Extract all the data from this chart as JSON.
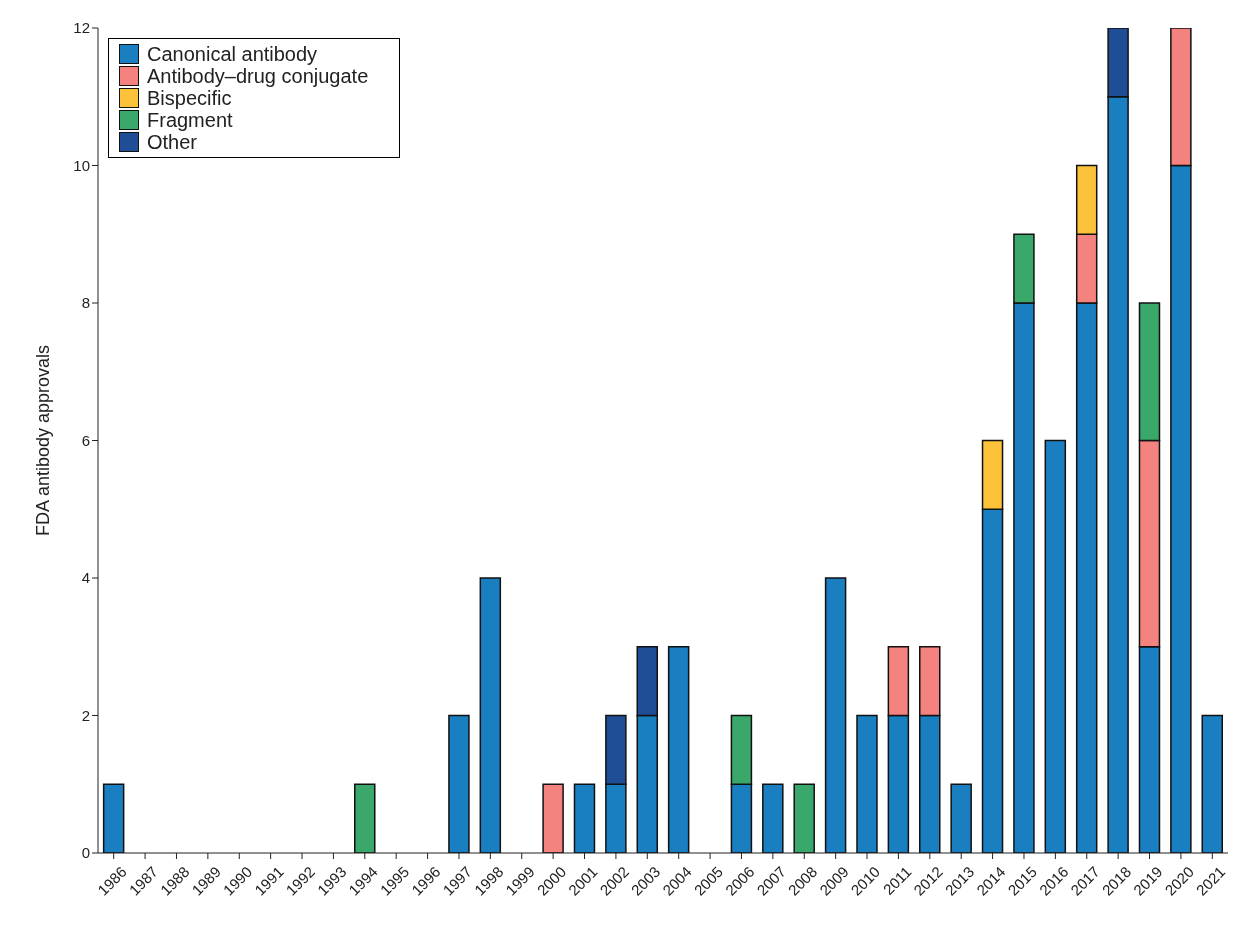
{
  "chart_data": {
    "type": "bar",
    "ylabel": "FDA antibody approvals",
    "stacked": true,
    "legend": "top left",
    "grid": false,
    "categories": [
      "1986",
      "1987",
      "1988",
      "1989",
      "1990",
      "1991",
      "1992",
      "1993",
      "1994",
      "1995",
      "1996",
      "1997",
      "1998",
      "1999",
      "2000",
      "2001",
      "2002",
      "2003",
      "2004",
      "2005",
      "2006",
      "2007",
      "2008",
      "2009",
      "2010",
      "2011",
      "2012",
      "2013",
      "2014",
      "2015",
      "2016",
      "2017",
      "2018",
      "2019",
      "2020",
      "2021"
    ],
    "ylim": [
      0,
      12
    ],
    "yticks": [
      0,
      2,
      4,
      6,
      8,
      10,
      12
    ],
    "series": [
      {
        "name": "Canonical antibody",
        "color": "#1a7fc1",
        "values": [
          1,
          0,
          0,
          0,
          0,
          0,
          0,
          0,
          0,
          0,
          0,
          2,
          4,
          0,
          0,
          1,
          1,
          2,
          3,
          0,
          1,
          1,
          0,
          4,
          2,
          2,
          2,
          1,
          5,
          8,
          6,
          8,
          11,
          3,
          10,
          2
        ]
      },
      {
        "name": "Antibody–drug conjugate",
        "color": "#f4827e",
        "values": [
          0,
          0,
          0,
          0,
          0,
          0,
          0,
          0,
          0,
          0,
          0,
          0,
          0,
          0,
          1,
          0,
          0,
          0,
          0,
          0,
          0,
          0,
          0,
          0,
          0,
          1,
          1,
          0,
          0,
          0,
          0,
          1,
          0,
          3,
          2,
          0
        ]
      },
      {
        "name": "Bispecific",
        "color": "#fcc23a",
        "values": [
          0,
          0,
          0,
          0,
          0,
          0,
          0,
          0,
          0,
          0,
          0,
          0,
          0,
          0,
          0,
          0,
          0,
          0,
          0,
          0,
          0,
          0,
          0,
          0,
          0,
          0,
          0,
          0,
          1,
          0,
          0,
          1,
          0,
          0,
          0,
          0
        ]
      },
      {
        "name": "Fragment",
        "color": "#3aa86b",
        "values": [
          0,
          0,
          0,
          0,
          0,
          0,
          0,
          0,
          1,
          0,
          0,
          0,
          0,
          0,
          0,
          0,
          0,
          0,
          0,
          0,
          1,
          0,
          1,
          0,
          0,
          0,
          0,
          0,
          0,
          1,
          0,
          0,
          0,
          2,
          0,
          0
        ]
      },
      {
        "name": "Other",
        "color": "#1f4e96",
        "values": [
          0,
          0,
          0,
          0,
          0,
          0,
          0,
          0,
          0,
          0,
          0,
          0,
          0,
          0,
          0,
          0,
          1,
          1,
          0,
          0,
          0,
          0,
          0,
          0,
          0,
          0,
          0,
          0,
          0,
          0,
          0,
          0,
          1,
          0,
          0,
          0
        ]
      }
    ]
  }
}
